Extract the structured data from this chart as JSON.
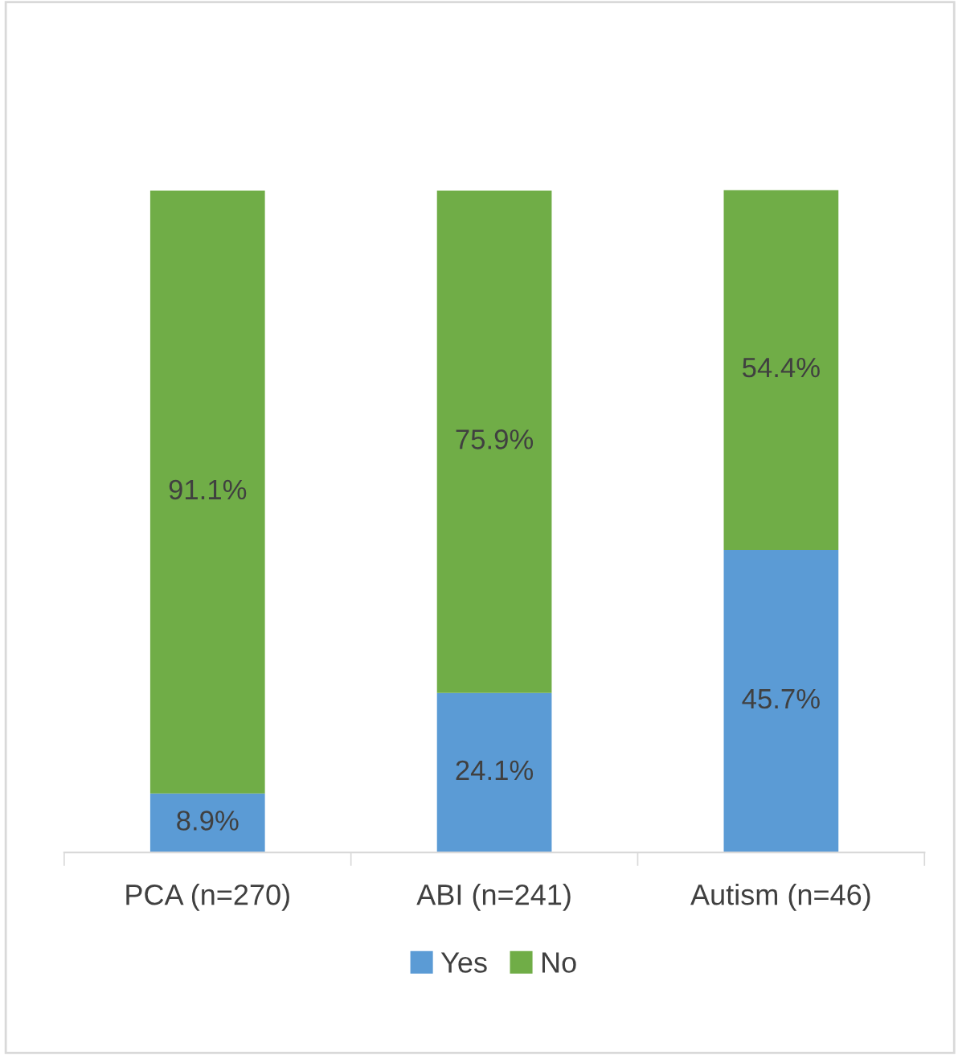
{
  "chart_data": {
    "type": "bar",
    "stacked": true,
    "legend": "bottom",
    "categories": [
      "PCA (n=270)",
      "ABI (n=241)",
      "Autism (n=46)"
    ],
    "series": [
      {
        "name": "Yes",
        "color": "#5b9bd5",
        "values": [
          8.9,
          24.1,
          45.7
        ],
        "value_labels": [
          "8.9%",
          "24.1%",
          "45.7%"
        ]
      },
      {
        "name": "No",
        "color": "#70ad47",
        "values": [
          91.1,
          75.9,
          54.4
        ],
        "value_labels": [
          "91.1%",
          "75.9%",
          "54.4%"
        ]
      }
    ]
  }
}
